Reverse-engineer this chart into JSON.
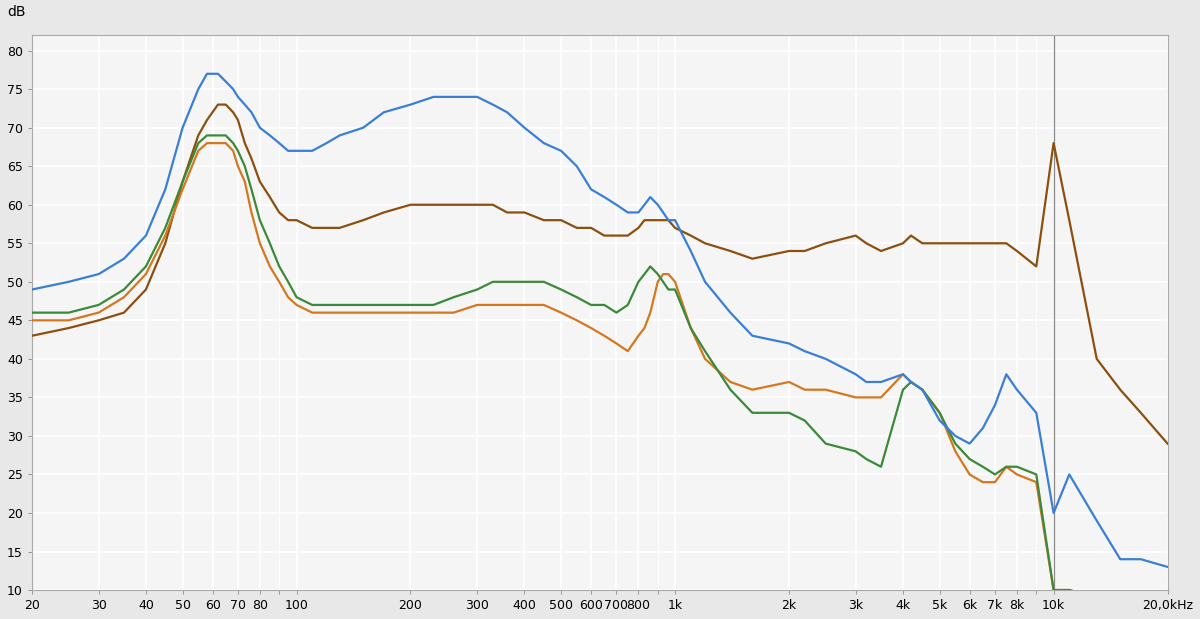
{
  "ylabel": "dB",
  "ylim": [
    10,
    82
  ],
  "yticks": [
    10,
    15,
    20,
    25,
    30,
    35,
    40,
    45,
    50,
    55,
    60,
    65,
    70,
    75,
    80
  ],
  "background_color": "#e8e8e8",
  "plot_bg_color": "#f5f5f5",
  "grid_color": "#ffffff",
  "line_width": 1.6,
  "colors": {
    "blue": "#3a7fd5",
    "brown": "#8B5010",
    "green": "#3a8a3a",
    "orange": "#d47820"
  },
  "x_ticks_major": [
    20,
    30,
    40,
    50,
    60,
    70,
    80,
    100,
    200,
    300,
    400,
    500,
    600,
    700,
    800,
    1000,
    2000,
    3000,
    4000,
    5000,
    6000,
    7000,
    8000,
    10000,
    20000
  ],
  "x_tick_labels": [
    "20",
    "30",
    "40",
    "50",
    "60",
    "70",
    "80",
    "100",
    "200",
    "300",
    "400",
    "500",
    "600",
    "700",
    "800",
    "1k",
    "2k",
    "3k",
    "4k",
    "5k",
    "6k",
    "7k",
    "8k",
    "10k",
    "20,0kHz"
  ],
  "freq_points": [
    20,
    25,
    30,
    35,
    40,
    45,
    50,
    55,
    58,
    62,
    65,
    68,
    70,
    73,
    76,
    80,
    85,
    90,
    95,
    100,
    110,
    120,
    130,
    150,
    170,
    200,
    230,
    260,
    300,
    330,
    360,
    400,
    450,
    500,
    550,
    600,
    650,
    700,
    750,
    800,
    830,
    860,
    900,
    930,
    960,
    1000,
    1100,
    1200,
    1400,
    1600,
    2000,
    2200,
    2500,
    3000,
    3200,
    3500,
    4000,
    4200,
    4500,
    5000,
    5500,
    6000,
    6500,
    7000,
    7500,
    8000,
    9000,
    10000,
    11000,
    13000,
    15000,
    17000,
    20000
  ],
  "blue_vals": [
    49,
    50,
    51,
    53,
    56,
    62,
    70,
    75,
    77,
    77,
    76,
    75,
    74,
    73,
    72,
    70,
    69,
    68,
    67,
    67,
    67,
    68,
    69,
    70,
    72,
    73,
    74,
    74,
    74,
    73,
    72,
    70,
    68,
    67,
    65,
    62,
    61,
    60,
    59,
    59,
    60,
    61,
    60,
    59,
    58,
    58,
    54,
    50,
    46,
    43,
    42,
    41,
    40,
    38,
    37,
    37,
    38,
    37,
    36,
    32,
    30,
    29,
    31,
    34,
    38,
    36,
    33,
    20,
    25,
    19,
    14,
    14,
    13
  ],
  "brown_vals": [
    43,
    44,
    45,
    46,
    49,
    55,
    63,
    69,
    71,
    73,
    73,
    72,
    71,
    68,
    66,
    63,
    61,
    59,
    58,
    58,
    57,
    57,
    57,
    58,
    59,
    60,
    60,
    60,
    60,
    60,
    59,
    59,
    58,
    58,
    57,
    57,
    56,
    56,
    56,
    57,
    58,
    58,
    58,
    58,
    58,
    57,
    56,
    55,
    54,
    53,
    54,
    54,
    55,
    56,
    55,
    54,
    55,
    56,
    55,
    55,
    55,
    55,
    55,
    55,
    55,
    54,
    52,
    68,
    58,
    40,
    36,
    33,
    29
  ],
  "green_vals": [
    46,
    46,
    47,
    49,
    52,
    57,
    63,
    68,
    69,
    69,
    69,
    68,
    67,
    65,
    62,
    58,
    55,
    52,
    50,
    48,
    47,
    47,
    47,
    47,
    47,
    47,
    47,
    48,
    49,
    50,
    50,
    50,
    50,
    49,
    48,
    47,
    47,
    46,
    47,
    50,
    51,
    52,
    51,
    50,
    49,
    49,
    44,
    41,
    36,
    33,
    33,
    32,
    29,
    28,
    27,
    26,
    36,
    37,
    36,
    33,
    29,
    27,
    26,
    25,
    26,
    26,
    25,
    10,
    10,
    9,
    9,
    9,
    9
  ],
  "orange_vals": [
    45,
    45,
    46,
    48,
    51,
    56,
    62,
    67,
    68,
    68,
    68,
    67,
    65,
    63,
    59,
    55,
    52,
    50,
    48,
    47,
    46,
    46,
    46,
    46,
    46,
    46,
    46,
    46,
    47,
    47,
    47,
    47,
    47,
    46,
    45,
    44,
    43,
    42,
    41,
    43,
    44,
    46,
    50,
    51,
    51,
    50,
    44,
    40,
    37,
    36,
    37,
    36,
    36,
    35,
    35,
    35,
    38,
    37,
    36,
    33,
    28,
    25,
    24,
    24,
    26,
    25,
    24,
    10,
    10,
    9,
    9,
    9,
    9
  ]
}
